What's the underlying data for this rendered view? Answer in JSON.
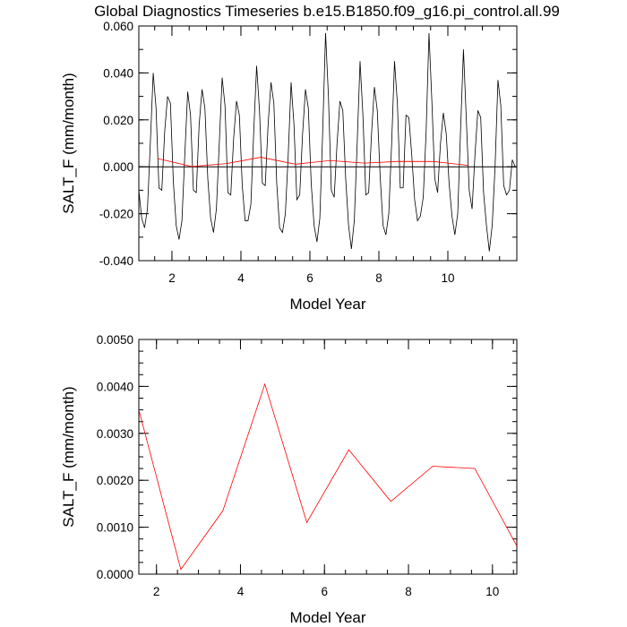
{
  "title": "Global Diagnostics Timeseries b.e15.B1850.f09_g16.pi_control.all.99",
  "colors": {
    "monthly_line": "#000000",
    "annual_line": "#ff0000",
    "frame": "#000000"
  },
  "chart_data": [
    {
      "type": "line",
      "title": "Global Diagnostics Timeseries b.e15.B1850.f09_g16.pi_control.all.99",
      "xlabel": "Model Year",
      "ylabel": "SALT_F (mm/month)",
      "xlim": [
        1.04,
        12.0
      ],
      "ylim": [
        -0.04,
        0.06
      ],
      "x_ticks": [
        2,
        4,
        6,
        8,
        10
      ],
      "x_tick_labels": [
        "2",
        "4",
        "6",
        "8",
        "10"
      ],
      "y_ticks": [
        -0.04,
        -0.02,
        0.0,
        0.02,
        0.04,
        0.06
      ],
      "y_tick_labels": [
        "-0.040",
        "-0.020",
        "0.000",
        "0.020",
        "0.040",
        "0.060"
      ],
      "grid": false,
      "series": [
        {
          "name": "",
          "color": "#000000",
          "x_start": 1.04,
          "x_step": 0.0833,
          "values": [
            -0.01,
            -0.022,
            -0.026,
            -0.018,
            0.01,
            0.04,
            0.025,
            -0.009,
            -0.01,
            0.015,
            0.03,
            0.027,
            -0.006,
            -0.025,
            -0.031,
            -0.023,
            0.005,
            0.032,
            0.022,
            -0.01,
            -0.011,
            0.018,
            0.033,
            0.025,
            -0.005,
            -0.022,
            -0.028,
            -0.018,
            0.01,
            0.038,
            0.026,
            -0.011,
            -0.012,
            0.012,
            0.028,
            0.022,
            -0.008,
            -0.023,
            -0.023,
            -0.016,
            0.015,
            0.043,
            0.024,
            -0.007,
            -0.008,
            0.018,
            0.036,
            0.027,
            -0.007,
            -0.026,
            -0.028,
            -0.02,
            0.005,
            0.036,
            0.018,
            -0.014,
            -0.012,
            0.014,
            0.033,
            0.025,
            -0.007,
            -0.025,
            -0.032,
            -0.022,
            0.015,
            0.057,
            0.03,
            -0.01,
            -0.013,
            0.01,
            0.028,
            0.024,
            -0.005,
            -0.025,
            -0.035,
            -0.023,
            0.01,
            0.045,
            0.022,
            -0.012,
            -0.011,
            0.014,
            0.034,
            0.024,
            -0.004,
            -0.025,
            -0.029,
            -0.02,
            0.01,
            0.045,
            0.027,
            -0.009,
            -0.009,
            0.022,
            0.021,
            0.005,
            -0.014,
            -0.023,
            -0.021,
            -0.013,
            0.015,
            0.057,
            0.028,
            -0.005,
            -0.011,
            0.01,
            0.023,
            0.014,
            -0.007,
            -0.021,
            -0.029,
            -0.02,
            0.016,
            0.05,
            0.02,
            -0.01,
            -0.018,
            0.005,
            0.024,
            0.021,
            -0.011,
            -0.025,
            -0.036,
            -0.025,
            0.0,
            0.037,
            0.026,
            -0.008,
            -0.012,
            -0.01,
            0.003,
            0.0
          ]
        },
        {
          "name": "",
          "color": "#ff0000",
          "x": [
            1.58,
            2.58,
            3.58,
            4.58,
            5.58,
            6.58,
            7.58,
            8.58,
            9.58,
            10.58
          ],
          "values": [
            0.0035,
            0.0001,
            0.00135,
            0.00405,
            0.0011,
            0.00265,
            0.00155,
            0.0023,
            0.00225,
            0.0006
          ]
        }
      ]
    },
    {
      "type": "line",
      "title": "",
      "xlabel": "Model Year",
      "ylabel": "SALT_F (mm/month)",
      "xlim": [
        1.58,
        10.58
      ],
      "ylim": [
        0.0,
        0.005
      ],
      "x_ticks": [
        2,
        4,
        6,
        8,
        10
      ],
      "x_tick_labels": [
        "2",
        "4",
        "6",
        "8",
        "10"
      ],
      "y_ticks": [
        0.0,
        0.001,
        0.002,
        0.003,
        0.004,
        0.005
      ],
      "y_tick_labels": [
        "0.0000",
        "0.0010",
        "0.0020",
        "0.0030",
        "0.0040",
        "0.0050"
      ],
      "grid": false,
      "series": [
        {
          "name": "",
          "color": "#ff0000",
          "x": [
            1.58,
            2.58,
            3.58,
            4.58,
            5.58,
            6.58,
            7.58,
            8.58,
            9.58,
            10.58
          ],
          "values": [
            0.0035,
            0.0001,
            0.00135,
            0.00405,
            0.0011,
            0.00265,
            0.00155,
            0.0023,
            0.00225,
            0.0006
          ]
        }
      ]
    }
  ]
}
